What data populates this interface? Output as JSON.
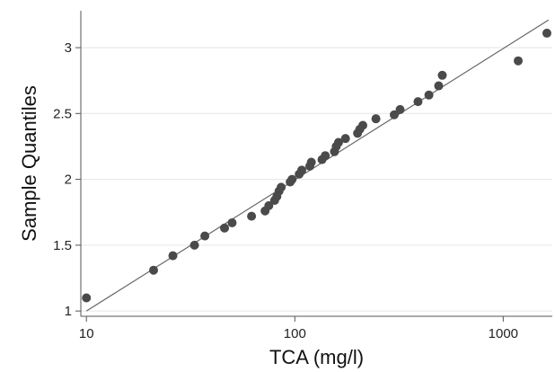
{
  "chart_data": {
    "type": "scatter",
    "title": "",
    "xlabel": "TCA (mg/l)",
    "ylabel": "Sample Quantiles",
    "x_scale": "log",
    "xlim": [
      9.4,
      1720
    ],
    "ylim": [
      0.96,
      3.28
    ],
    "x_ticks": [
      10,
      100,
      1000
    ],
    "x_tick_labels": [
      "10",
      "100",
      "1000"
    ],
    "y_ticks": [
      1,
      1.5,
      2,
      2.5,
      3
    ],
    "y_tick_labels": [
      "1",
      "1.5",
      "2",
      "2.5",
      "3"
    ],
    "grid": "horizontal",
    "legend": "none",
    "colors": {
      "points": "#4a4a4a",
      "line": "#666666",
      "grid": "#e6e6e6",
      "axis": "#555555"
    },
    "reference_line": {
      "from": [
        10,
        1.0
      ],
      "to": [
        1650,
        3.21
      ]
    },
    "points": [
      {
        "x": 10,
        "y": 1.1
      },
      {
        "x": 21,
        "y": 1.31
      },
      {
        "x": 26,
        "y": 1.42
      },
      {
        "x": 33,
        "y": 1.5
      },
      {
        "x": 37,
        "y": 1.57
      },
      {
        "x": 46,
        "y": 1.63
      },
      {
        "x": 50,
        "y": 1.67
      },
      {
        "x": 62,
        "y": 1.72
      },
      {
        "x": 72,
        "y": 1.76
      },
      {
        "x": 75,
        "y": 1.8
      },
      {
        "x": 80,
        "y": 1.84
      },
      {
        "x": 82,
        "y": 1.87
      },
      {
        "x": 84,
        "y": 1.91
      },
      {
        "x": 86,
        "y": 1.94
      },
      {
        "x": 95,
        "y": 1.98
      },
      {
        "x": 97,
        "y": 2.0
      },
      {
        "x": 105,
        "y": 2.04
      },
      {
        "x": 108,
        "y": 2.07
      },
      {
        "x": 118,
        "y": 2.1
      },
      {
        "x": 120,
        "y": 2.13
      },
      {
        "x": 135,
        "y": 2.15
      },
      {
        "x": 140,
        "y": 2.18
      },
      {
        "x": 155,
        "y": 2.21
      },
      {
        "x": 158,
        "y": 2.25
      },
      {
        "x": 162,
        "y": 2.28
      },
      {
        "x": 175,
        "y": 2.31
      },
      {
        "x": 200,
        "y": 2.35
      },
      {
        "x": 205,
        "y": 2.38
      },
      {
        "x": 212,
        "y": 2.41
      },
      {
        "x": 245,
        "y": 2.46
      },
      {
        "x": 300,
        "y": 2.49
      },
      {
        "x": 320,
        "y": 2.53
      },
      {
        "x": 390,
        "y": 2.59
      },
      {
        "x": 440,
        "y": 2.64
      },
      {
        "x": 490,
        "y": 2.71
      },
      {
        "x": 510,
        "y": 2.79
      },
      {
        "x": 1180,
        "y": 2.9
      },
      {
        "x": 1620,
        "y": 3.11
      }
    ]
  }
}
